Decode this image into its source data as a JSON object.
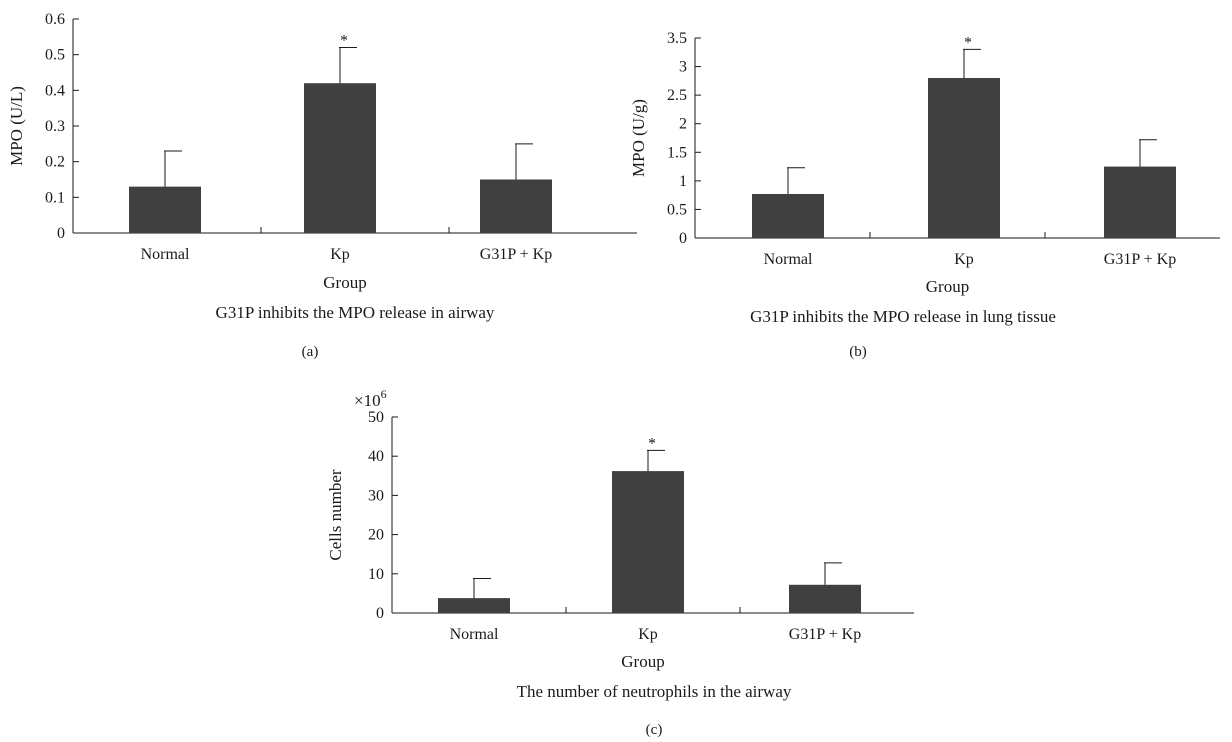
{
  "colors": {
    "bar": "#404040",
    "axis": "#1a1a1a"
  },
  "chart_data": [
    {
      "type": "bar",
      "panel_label": "(a)",
      "caption": "G31P inhibits the MPO release in airway",
      "xlabel": "Group",
      "ylabel": "MPO (U/L)",
      "y_multiplier": "",
      "categories": [
        "Normal",
        "Kp",
        "G31P + Kp"
      ],
      "values": [
        0.13,
        0.42,
        0.15
      ],
      "errors": [
        0.1,
        0.1,
        0.1
      ],
      "significance": [
        "",
        "*",
        ""
      ],
      "ylim": [
        0,
        0.6
      ],
      "yticks": [
        0,
        0.1,
        0.2,
        0.3,
        0.4,
        0.5,
        0.6
      ],
      "ytick_labels": [
        "0",
        "0.1",
        "0.2",
        "0.3",
        "0.4",
        "0.5",
        "0.6"
      ],
      "grid": false,
      "legend": "none"
    },
    {
      "type": "bar",
      "panel_label": "(b)",
      "caption": "G31P inhibits the MPO release in lung tissue",
      "xlabel": "Group",
      "ylabel": "MPO (U/g)",
      "y_multiplier": "",
      "categories": [
        "Normal",
        "Kp",
        "G31P + Kp"
      ],
      "values": [
        0.77,
        2.8,
        1.25
      ],
      "errors": [
        0.46,
        0.5,
        0.47
      ],
      "significance": [
        "",
        "*",
        ""
      ],
      "ylim": [
        0,
        3.5
      ],
      "yticks": [
        0,
        0.5,
        1,
        1.5,
        2,
        2.5,
        3,
        3.5
      ],
      "ytick_labels": [
        "0",
        "0.5",
        "1",
        "1.5",
        "2",
        "2.5",
        "3",
        "3.5"
      ],
      "grid": false,
      "legend": "none"
    },
    {
      "type": "bar",
      "panel_label": "(c)",
      "caption": "The number of neutrophils in the airway",
      "xlabel": "Group",
      "ylabel": "Cells number",
      "y_multiplier": "×10",
      "y_multiplier_exp": "6",
      "categories": [
        "Normal",
        "Kp",
        "G31P + Kp"
      ],
      "values": [
        3.8,
        36.2,
        7.2
      ],
      "errors": [
        5.0,
        5.3,
        5.6
      ],
      "significance": [
        "",
        "*",
        ""
      ],
      "ylim": [
        0,
        50
      ],
      "yticks": [
        0,
        10,
        20,
        30,
        40,
        50
      ],
      "ytick_labels": [
        "0",
        "10",
        "20",
        "30",
        "40",
        "50"
      ],
      "grid": false,
      "legend": "none"
    }
  ]
}
